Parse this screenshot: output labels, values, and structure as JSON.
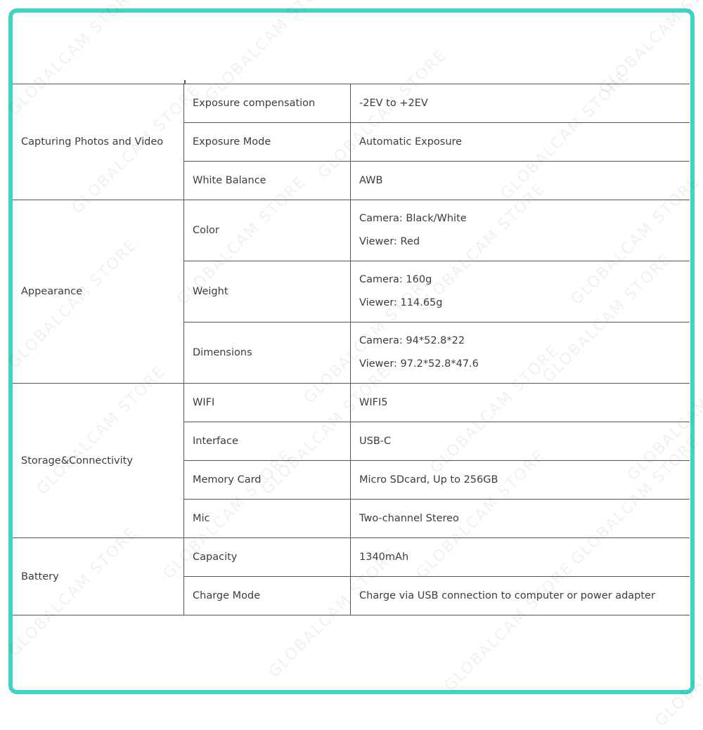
{
  "watermark": "GLOBALCAM STORE",
  "colors": {
    "frame": "#40d3bf",
    "text": "#3c3c3c",
    "rule": "#555555"
  },
  "groups": [
    {
      "name": "Capturing Photos and Video",
      "rows": [
        {
          "key": "Exposure compensation",
          "values": [
            "-2EV to +2EV"
          ]
        },
        {
          "key": "Exposure Mode",
          "values": [
            "Automatic Exposure"
          ]
        },
        {
          "key": "White Balance",
          "values": [
            "AWB"
          ]
        }
      ]
    },
    {
      "name": "Appearance",
      "rows": [
        {
          "key": "Color",
          "values": [
            "Camera: Black/White",
            "Viewer: Red"
          ]
        },
        {
          "key": "Weight",
          "values": [
            "Camera: 160g",
            "Viewer: 114.65g"
          ]
        },
        {
          "key": "Dimensions",
          "values": [
            "Camera: 94*52.8*22",
            "Viewer: 97.2*52.8*47.6"
          ]
        }
      ]
    },
    {
      "name": "Storage&Connectivity",
      "rows": [
        {
          "key": "WIFI",
          "values": [
            "WIFI5"
          ]
        },
        {
          "key": "Interface",
          "values": [
            "USB-C"
          ]
        },
        {
          "key": "Memory Card",
          "values": [
            "Micro SDcard, Up to 256GB"
          ]
        },
        {
          "key": "Mic",
          "values": [
            "Two-channel Stereo"
          ]
        }
      ]
    },
    {
      "name": "Battery",
      "rows": [
        {
          "key": "Capacity",
          "values": [
            "1340mAh"
          ]
        },
        {
          "key": "Charge Mode",
          "values": [
            "Charge via USB connection to computer or power adapter"
          ]
        }
      ]
    }
  ]
}
